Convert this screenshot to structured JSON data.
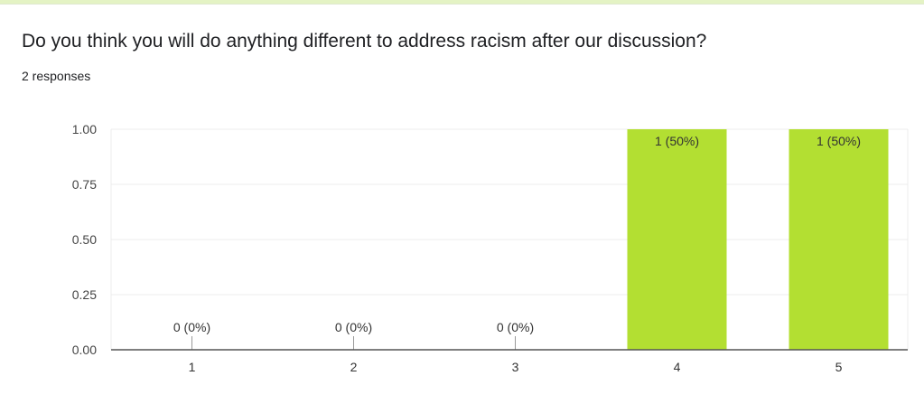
{
  "question": {
    "title": "Do you think you will do anything different to address racism after our discussion?",
    "responses": "2 responses"
  },
  "colors": {
    "bar": "#b3df32",
    "top_band": "#e4f3c4"
  },
  "chart_data": {
    "type": "bar",
    "categories": [
      "1",
      "2",
      "3",
      "4",
      "5"
    ],
    "values": [
      0,
      0,
      0,
      1,
      1
    ],
    "data_labels": [
      "0 (0%)",
      "0 (0%)",
      "0 (0%)",
      "1 (50%)",
      "1 (50%)"
    ],
    "ylim": [
      0,
      1
    ],
    "yticks": [
      "0.00",
      "0.25",
      "0.50",
      "0.75",
      "1.00"
    ],
    "grid": true,
    "legend": "none",
    "title": "",
    "xlabel": "",
    "ylabel": ""
  }
}
